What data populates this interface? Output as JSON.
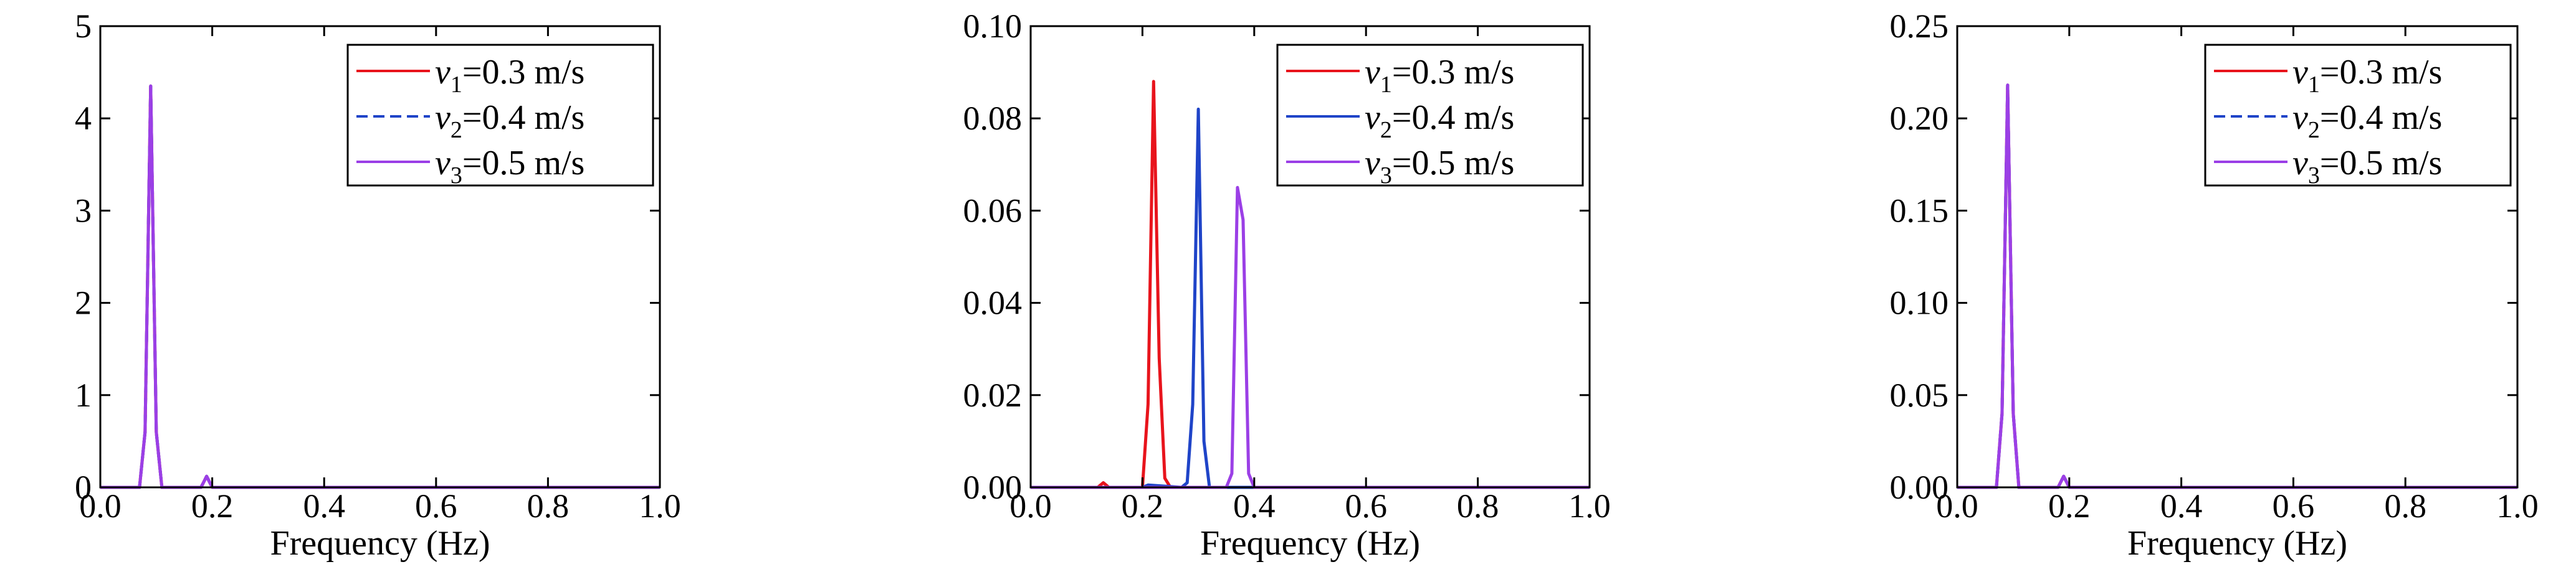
{
  "figure": {
    "panels": [
      {
        "xlabel": "Frequency (Hz)",
        "xticks": [
          "0.0",
          "0.2",
          "0.4",
          "0.6",
          "0.8",
          "1.0"
        ],
        "yticks": [
          "0",
          "1",
          "2",
          "3",
          "4",
          "5"
        ],
        "legend": [
          {
            "sym": "v",
            "sub": "1",
            "text": "=0.3 m/s"
          },
          {
            "sym": "v",
            "sub": "2",
            "text": "=0.4 m/s"
          },
          {
            "sym": "v",
            "sub": "3",
            "text": "=0.5 m/s"
          }
        ]
      },
      {
        "xlabel": "Frequency (Hz)",
        "xticks": [
          "0.0",
          "0.2",
          "0.4",
          "0.6",
          "0.8",
          "1.0"
        ],
        "yticks": [
          "0.00",
          "0.02",
          "0.04",
          "0.06",
          "0.08",
          "0.10"
        ],
        "legend": [
          {
            "sym": "v",
            "sub": "1",
            "text": "=0.3 m/s"
          },
          {
            "sym": "v",
            "sub": "2",
            "text": "=0.4 m/s"
          },
          {
            "sym": "v",
            "sub": "3",
            "text": "=0.5 m/s"
          }
        ]
      },
      {
        "xlabel": "Frequency (Hz)",
        "xticks": [
          "0.0",
          "0.2",
          "0.4",
          "0.6",
          "0.8",
          "1.0"
        ],
        "yticks": [
          "0.00",
          "0.05",
          "0.10",
          "0.15",
          "0.20",
          "0.25"
        ],
        "legend": [
          {
            "sym": "v",
            "sub": "1",
            "text": "=0.3 m/s"
          },
          {
            "sym": "v",
            "sub": "2",
            "text": "=0.4 m/s"
          },
          {
            "sym": "v",
            "sub": "3",
            "text": "=0.5 m/s"
          }
        ]
      }
    ]
  },
  "chart_data": [
    {
      "type": "line",
      "xlabel": "Frequency (Hz)",
      "ylabel": "",
      "xlim": [
        0,
        1.0
      ],
      "ylim": [
        0,
        5
      ],
      "grid": false,
      "legend_position": "top-right",
      "series": [
        {
          "name": "v1=0.3 m/s",
          "color": "#e8141c",
          "dash": "solid",
          "x": [
            0,
            0.07,
            0.08,
            0.09,
            0.1,
            0.11,
            0.12,
            0.18,
            0.19,
            0.2,
            0.21,
            1.0
          ],
          "y": [
            0,
            0,
            0.6,
            4.35,
            0.6,
            0,
            0,
            0,
            0.12,
            0,
            0,
            0
          ]
        },
        {
          "name": "v2=0.4 m/s",
          "color": "#1f44c8",
          "dash": "dashed",
          "x": [
            0,
            0.07,
            0.08,
            0.09,
            0.1,
            0.11,
            0.12,
            0.18,
            0.19,
            0.2,
            0.21,
            1.0
          ],
          "y": [
            0,
            0,
            0.6,
            4.35,
            0.6,
            0,
            0,
            0,
            0.12,
            0,
            0,
            0
          ]
        },
        {
          "name": "v3=0.5 m/s",
          "color": "#9b3fe6",
          "dash": "solid",
          "x": [
            0,
            0.07,
            0.08,
            0.09,
            0.1,
            0.11,
            0.12,
            0.18,
            0.19,
            0.2,
            0.21,
            1.0
          ],
          "y": [
            0,
            0,
            0.6,
            4.35,
            0.6,
            0,
            0,
            0,
            0.12,
            0,
            0,
            0
          ]
        }
      ]
    },
    {
      "type": "line",
      "xlabel": "Frequency (Hz)",
      "ylabel": "",
      "xlim": [
        0,
        1.0
      ],
      "ylim": [
        0,
        0.1
      ],
      "grid": false,
      "legend_position": "top-right",
      "series": [
        {
          "name": "v1=0.3 m/s",
          "color": "#e8141c",
          "dash": "solid",
          "x": [
            0,
            0.12,
            0.13,
            0.14,
            0.2,
            0.21,
            0.22,
            0.23,
            0.24,
            0.25,
            1.0
          ],
          "y": [
            0,
            0,
            0.001,
            0,
            0,
            0.018,
            0.088,
            0.028,
            0.002,
            0,
            0
          ]
        },
        {
          "name": "v2=0.4 m/s",
          "color": "#1f44c8",
          "dash": "solid",
          "x": [
            0,
            0.2,
            0.21,
            0.27,
            0.28,
            0.29,
            0.3,
            0.31,
            0.32,
            0.33,
            1.0
          ],
          "y": [
            0,
            0,
            0.0005,
            0,
            0.001,
            0.018,
            0.082,
            0.01,
            0,
            0,
            0
          ]
        },
        {
          "name": "v3=0.5 m/s",
          "color": "#9b3fe6",
          "dash": "solid",
          "x": [
            0,
            0.35,
            0.36,
            0.37,
            0.38,
            0.39,
            0.4,
            1.0
          ],
          "y": [
            0,
            0,
            0.003,
            0.065,
            0.058,
            0.003,
            0,
            0
          ]
        }
      ]
    },
    {
      "type": "line",
      "xlabel": "Frequency (Hz)",
      "ylabel": "",
      "xlim": [
        0,
        1.0
      ],
      "ylim": [
        0,
        0.25
      ],
      "grid": false,
      "legend_position": "top-right",
      "series": [
        {
          "name": "v1=0.3 m/s",
          "color": "#e8141c",
          "dash": "solid",
          "x": [
            0,
            0.07,
            0.08,
            0.09,
            0.1,
            0.11,
            0.12,
            0.18,
            0.19,
            0.2,
            0.21,
            1.0
          ],
          "y": [
            0,
            0,
            0.04,
            0.218,
            0.04,
            0,
            0,
            0,
            0.006,
            0,
            0,
            0
          ]
        },
        {
          "name": "v2=0.4 m/s",
          "color": "#1f44c8",
          "dash": "dashed",
          "x": [
            0,
            0.07,
            0.08,
            0.09,
            0.1,
            0.11,
            0.12,
            0.18,
            0.19,
            0.2,
            0.21,
            1.0
          ],
          "y": [
            0,
            0,
            0.04,
            0.218,
            0.04,
            0,
            0,
            0,
            0.006,
            0,
            0,
            0
          ]
        },
        {
          "name": "v3=0.5 m/s",
          "color": "#9b3fe6",
          "dash": "solid",
          "x": [
            0,
            0.07,
            0.08,
            0.09,
            0.1,
            0.11,
            0.12,
            0.18,
            0.19,
            0.2,
            0.21,
            1.0
          ],
          "y": [
            0,
            0,
            0.04,
            0.218,
            0.04,
            0,
            0,
            0,
            0.006,
            0,
            0,
            0
          ]
        }
      ]
    }
  ]
}
